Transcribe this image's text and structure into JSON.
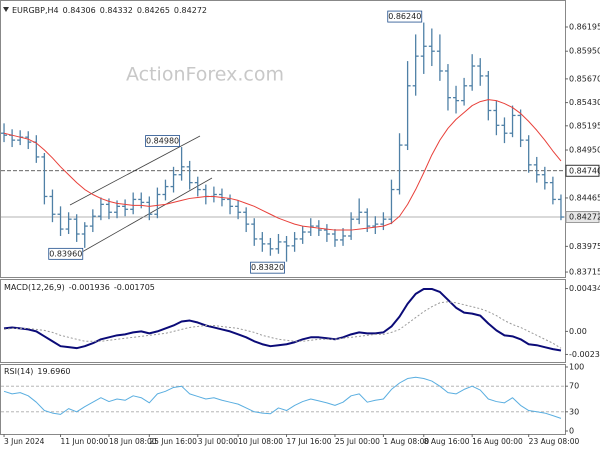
{
  "chart_data": [
    {
      "type": "ohlc",
      "title": "EURGBP,H4",
      "header_values": [
        0.84306,
        0.84332,
        0.84265,
        0.84272
      ],
      "watermark": "ActionForex.com",
      "color": "#4f80a6",
      "categories": [
        "3 Jun 2024",
        null,
        null,
        null,
        null,
        null,
        null,
        "11 Jun 00:00",
        null,
        null,
        null,
        null,
        null,
        "18 Jun 08:00",
        null,
        null,
        null,
        null,
        "25 Jun 16:00",
        null,
        null,
        null,
        null,
        null,
        "3 Jul 00:00",
        null,
        null,
        null,
        null,
        "10 Jul 08:00",
        null,
        null,
        null,
        null,
        null,
        "17 Jul 16:00",
        null,
        null,
        null,
        null,
        null,
        "25 Jul 00:00",
        null,
        null,
        null,
        null,
        null,
        "1 Aug 08:00",
        null,
        null,
        null,
        null,
        "8 Aug 16:00",
        null,
        null,
        null,
        null,
        null,
        "16 Aug 00:00",
        null,
        null,
        null,
        null,
        null,
        null,
        "23 Aug 08:00",
        null,
        null,
        null,
        null
      ],
      "open": [
        0.8512,
        0.851,
        0.8505,
        0.8508,
        0.8503,
        0.8488,
        0.8448,
        0.843,
        0.8415,
        0.8425,
        0.841,
        0.8418,
        0.8428,
        0.844,
        0.8432,
        0.8438,
        0.8435,
        0.8445,
        0.8442,
        0.843,
        0.845,
        0.8458,
        0.847,
        0.8478,
        0.8462,
        0.8455,
        0.8448,
        0.845,
        0.8445,
        0.8438,
        0.8432,
        0.842,
        0.8405,
        0.84,
        0.8395,
        0.8402,
        0.8398,
        0.8405,
        0.8412,
        0.8418,
        0.8414,
        0.841,
        0.8404,
        0.8408,
        0.8425,
        0.8432,
        0.8418,
        0.842,
        0.8425,
        0.8455,
        0.85,
        0.856,
        0.859,
        0.86,
        0.8595,
        0.8575,
        0.8548,
        0.8545,
        0.856,
        0.858,
        0.857,
        0.8535,
        0.852,
        0.8512,
        0.853,
        0.8505,
        0.848,
        0.847,
        0.8462,
        0.8445
      ],
      "high": [
        0.8522,
        0.8516,
        0.8515,
        0.8514,
        0.851,
        0.8492,
        0.8455,
        0.8438,
        0.8432,
        0.843,
        0.8422,
        0.8435,
        0.8447,
        0.8446,
        0.8444,
        0.8445,
        0.8452,
        0.8452,
        0.8448,
        0.8457,
        0.8465,
        0.8478,
        0.8498,
        0.8484,
        0.8468,
        0.846,
        0.8458,
        0.8456,
        0.845,
        0.8444,
        0.8437,
        0.8426,
        0.8412,
        0.8406,
        0.841,
        0.8408,
        0.8412,
        0.8418,
        0.8426,
        0.8424,
        0.842,
        0.8415,
        0.8416,
        0.8432,
        0.8446,
        0.8436,
        0.8428,
        0.8432,
        0.8465,
        0.8512,
        0.8585,
        0.8612,
        0.8624,
        0.8618,
        0.8612,
        0.8582,
        0.856,
        0.8568,
        0.8592,
        0.8588,
        0.8575,
        0.8545,
        0.8528,
        0.854,
        0.8536,
        0.851,
        0.8488,
        0.8478,
        0.8468,
        0.845
      ],
      "low": [
        0.8503,
        0.8498,
        0.85,
        0.8496,
        0.8482,
        0.844,
        0.8422,
        0.8408,
        0.841,
        0.8402,
        0.8396,
        0.8412,
        0.8424,
        0.8425,
        0.8426,
        0.8428,
        0.843,
        0.8436,
        0.8424,
        0.8426,
        0.8444,
        0.8452,
        0.8464,
        0.8455,
        0.8448,
        0.844,
        0.8442,
        0.8438,
        0.843,
        0.8425,
        0.8412,
        0.8398,
        0.8392,
        0.8388,
        0.839,
        0.8382,
        0.8392,
        0.84,
        0.8408,
        0.8408,
        0.8402,
        0.8397,
        0.8398,
        0.8404,
        0.842,
        0.8412,
        0.841,
        0.8414,
        0.842,
        0.845,
        0.8495,
        0.855,
        0.8572,
        0.858,
        0.8565,
        0.8535,
        0.8532,
        0.854,
        0.8555,
        0.856,
        0.8525,
        0.851,
        0.8502,
        0.8508,
        0.8498,
        0.8472,
        0.8462,
        0.8455,
        0.844,
        0.8424
      ],
      "close": [
        0.851,
        0.8505,
        0.8508,
        0.8503,
        0.8488,
        0.8448,
        0.843,
        0.8415,
        0.8425,
        0.841,
        0.8418,
        0.8428,
        0.844,
        0.8432,
        0.8438,
        0.8435,
        0.8445,
        0.8442,
        0.843,
        0.845,
        0.8458,
        0.847,
        0.8478,
        0.8462,
        0.8455,
        0.8448,
        0.845,
        0.8445,
        0.8438,
        0.8432,
        0.842,
        0.8405,
        0.84,
        0.8395,
        0.8402,
        0.8398,
        0.8405,
        0.8412,
        0.8418,
        0.8414,
        0.841,
        0.8404,
        0.8408,
        0.8425,
        0.8432,
        0.8418,
        0.842,
        0.8425,
        0.8455,
        0.85,
        0.856,
        0.859,
        0.86,
        0.8595,
        0.8575,
        0.8548,
        0.8545,
        0.856,
        0.858,
        0.857,
        0.8535,
        0.852,
        0.8512,
        0.853,
        0.8505,
        0.848,
        0.847,
        0.8462,
        0.8445,
        0.84272
      ],
      "series": [
        {
          "color": "#e8403a",
          "width": 1,
          "values": [
            0.8512,
            0.851,
            0.8508,
            0.8506,
            0.8502,
            0.8495,
            0.8487,
            0.8478,
            0.847,
            0.8462,
            0.8455,
            0.845,
            0.8446,
            0.8443,
            0.8441,
            0.844,
            0.8439,
            0.8439,
            0.8438,
            0.8439,
            0.844,
            0.8442,
            0.8444,
            0.8446,
            0.8447,
            0.8448,
            0.8448,
            0.8447,
            0.8446,
            0.8444,
            0.8441,
            0.8438,
            0.8434,
            0.843,
            0.8426,
            0.8423,
            0.842,
            0.8418,
            0.8417,
            0.8416,
            0.8415,
            0.8414,
            0.8414,
            0.8414,
            0.8415,
            0.8416,
            0.8417,
            0.8418,
            0.8421,
            0.8428,
            0.844,
            0.8455,
            0.8472,
            0.849,
            0.8505,
            0.8517,
            0.8526,
            0.8533,
            0.854,
            0.8544,
            0.8546,
            0.8545,
            0.8542,
            0.8538,
            0.8532,
            0.8524,
            0.8515,
            0.8505,
            0.8494,
            0.8484
          ]
        }
      ],
      "ylim": [
        0.83675,
        0.86438
      ],
      "yticks": [
        0.86195,
        {
          "value": 0.8595,
          "label": "0.85950"
        },
        {
          "value": 0.8567,
          "label": "0.85670"
        },
        {
          "value": 0.8543,
          "label": "0.85430"
        },
        0.85195,
        {
          "value": 0.8495,
          "label": "0.84950"
        },
        0.84465,
        0.83975,
        0.83715
      ],
      "levels": [
        {
          "value": 0.8474,
          "label": "0.84740"
        },
        0.84272
      ],
      "level_colors": [
        "#333333",
        "#9a9a9a"
      ],
      "level_dash": [
        "4 2",
        ""
      ],
      "annotations": [
        {
          "value": 0.8624,
          "label": "0.86240"
        },
        {
          "value": 0.8498,
          "label": "0.84980"
        },
        {
          "value": 0.8396,
          "label": "0.83960"
        },
        {
          "value": 0.8382,
          "label": "0.83820"
        }
      ]
    },
    {
      "type": "line",
      "title": "MACD(12,26,9)",
      "header_values": [
        -0.001936,
        -0.001705
      ],
      "series": [
        {
          "color": "#0b0b78",
          "width": 2,
          "values": [
            0.0003,
            0.0004,
            0.0003,
            0.0002,
            0.0,
            -0.0005,
            -0.001,
            -0.0015,
            -0.0016,
            -0.0017,
            -0.0015,
            -0.0012,
            -0.0008,
            -0.0006,
            -0.0004,
            -0.0003,
            -0.0001,
            0.0,
            -0.0002,
            0.0,
            0.0003,
            0.0006,
            0.001,
            0.0011,
            0.0009,
            0.0006,
            0.0004,
            0.0002,
            0.0,
            -0.0003,
            -0.0006,
            -0.001,
            -0.0013,
            -0.0015,
            -0.0014,
            -0.0013,
            -0.0011,
            -0.0008,
            -0.0006,
            -0.0006,
            -0.0007,
            -0.0008,
            -0.0006,
            -0.0003,
            -0.0001,
            -0.0002,
            -0.0002,
            -0.0001,
            0.0005,
            0.0015,
            0.0028,
            0.0038,
            0.0043,
            0.0043,
            0.004,
            0.0032,
            0.0024,
            0.0019,
            0.0018,
            0.0016,
            0.0008,
            0.0001,
            -0.0004,
            -0.0005,
            -0.0008,
            -0.0013,
            -0.0014,
            -0.0016,
            -0.0018,
            -0.001936
          ]
        },
        {
          "color": "#9a9a9a",
          "width": 1,
          "dash": "2 2",
          "values": [
            0.0002,
            0.0003,
            0.0003,
            0.0003,
            0.0002,
            0.0001,
            -0.0001,
            -0.0004,
            -0.0006,
            -0.0008,
            -0.001,
            -0.001,
            -0.001,
            -0.0009,
            -0.0008,
            -0.0007,
            -0.0006,
            -0.0005,
            -0.0004,
            -0.0003,
            -0.0002,
            0.0,
            0.0002,
            0.0004,
            0.0005,
            0.0006,
            0.0006,
            0.0005,
            0.0004,
            0.0003,
            0.0001,
            -0.0001,
            -0.0004,
            -0.0006,
            -0.0008,
            -0.0009,
            -0.001,
            -0.001,
            -0.0009,
            -0.0008,
            -0.0008,
            -0.0008,
            -0.0007,
            -0.0006,
            -0.0005,
            -0.0004,
            -0.0003,
            -0.0003,
            -0.0001,
            0.0002,
            0.0008,
            0.0014,
            0.002,
            0.0025,
            0.0029,
            0.003,
            0.0029,
            0.0027,
            0.0025,
            0.0023,
            0.002,
            0.0016,
            0.0011,
            0.0007,
            0.0004,
            0.0,
            -0.0004,
            -0.0008,
            -0.0012,
            -0.001705
          ]
        }
      ],
      "ylim": [
        -0.0029,
        0.004906
      ],
      "yticks": [
        0.004342,
        {
          "value": 0,
          "label": "0.00"
        },
        -0.002336
      ]
    },
    {
      "type": "line",
      "title": "RSI(14)",
      "header_values": [
        {
          "value": 19.696,
          "label": "19.6960"
        }
      ],
      "series": [
        {
          "color": "#5aaee0",
          "width": 1,
          "values": [
            62,
            58,
            60,
            55,
            45,
            32,
            28,
            26,
            35,
            30,
            38,
            45,
            52,
            46,
            50,
            48,
            55,
            52,
            44,
            58,
            62,
            68,
            70,
            58,
            54,
            50,
            52,
            48,
            45,
            42,
            36,
            30,
            28,
            27,
            36,
            32,
            40,
            46,
            50,
            47,
            44,
            40,
            45,
            55,
            58,
            45,
            48,
            50,
            65,
            75,
            82,
            84,
            82,
            78,
            70,
            60,
            58,
            65,
            70,
            64,
            50,
            46,
            44,
            52,
            40,
            32,
            30,
            28,
            24,
            19.696
          ]
        }
      ],
      "ylim": [
        0,
        100
      ],
      "yticks": [
        100,
        70,
        30,
        0
      ],
      "levels": [
        70,
        30
      ],
      "level_colors": [
        "#aaaaaa",
        "#aaaaaa"
      ],
      "level_dash": [
        "3 2",
        "3 2"
      ]
    }
  ]
}
